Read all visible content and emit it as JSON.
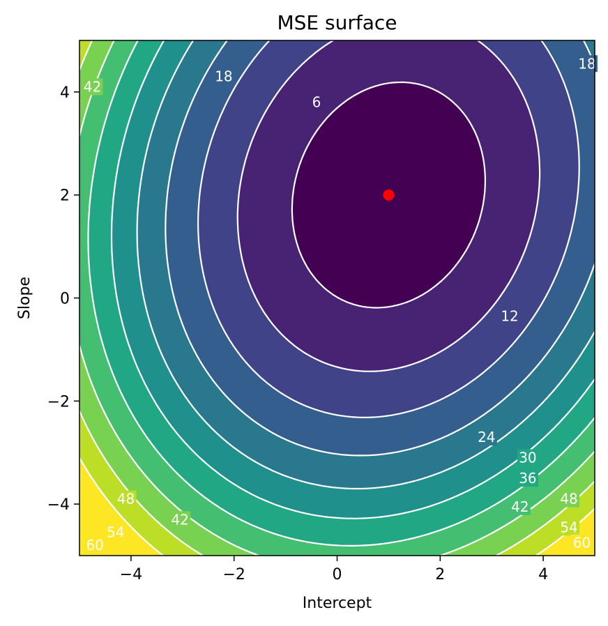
{
  "chart_data": {
    "type": "contour",
    "title": "MSE surface",
    "xlabel": "Intercept",
    "ylabel": "Slope",
    "xlim": [
      -5,
      5
    ],
    "ylim": [
      -5,
      5
    ],
    "xticks": [
      -4,
      -2,
      0,
      2,
      4
    ],
    "yticks": [
      -4,
      -2,
      0,
      2,
      4
    ],
    "tick_label_format": "unicode-minus",
    "colormap": "viridis",
    "grid": false,
    "filled": true,
    "line_color": "#ffffff",
    "levels": [
      6,
      12,
      18,
      24,
      30,
      36,
      42,
      48,
      54,
      60
    ],
    "minimum": {
      "x": 1.0,
      "y": 2.0,
      "color": "#ff0000"
    },
    "contour_labels": [
      {
        "text": "6",
        "x": -0.4,
        "y": 3.8
      },
      {
        "text": "12",
        "x": 3.35,
        "y": -0.35
      },
      {
        "text": "18",
        "x": -2.2,
        "y": 4.3
      },
      {
        "text": "18",
        "x": 4.85,
        "y": 4.55
      },
      {
        "text": "24",
        "x": 2.9,
        "y": -2.7
      },
      {
        "text": "30",
        "x": 3.7,
        "y": -3.1
      },
      {
        "text": "36",
        "x": 3.7,
        "y": -3.5
      },
      {
        "text": "42",
        "x": -4.75,
        "y": 4.1
      },
      {
        "text": "42",
        "x": -3.05,
        "y": -4.3
      },
      {
        "text": "42",
        "x": 3.55,
        "y": -4.05
      },
      {
        "text": "48",
        "x": -4.1,
        "y": -3.9
      },
      {
        "text": "48",
        "x": 4.5,
        "y": -3.9
      },
      {
        "text": "54",
        "x": -4.3,
        "y": -4.55
      },
      {
        "text": "54",
        "x": 4.5,
        "y": -4.45
      },
      {
        "text": "60",
        "x": -4.7,
        "y": -4.8
      },
      {
        "text": "60",
        "x": 4.75,
        "y": -4.75
      }
    ]
  }
}
